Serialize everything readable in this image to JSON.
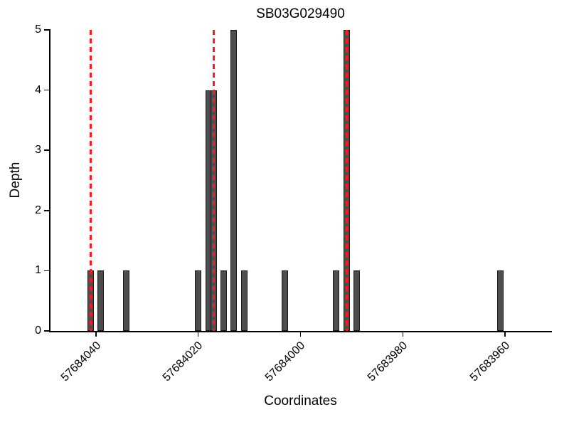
{
  "chart_data": {
    "type": "bar",
    "title": "SB03G029490",
    "xlabel": "Coordinates",
    "ylabel": "Depth",
    "x_axis_reversed": true,
    "x_range": [
      57684049,
      57683951
    ],
    "y_range": [
      0,
      5
    ],
    "y_ticks": [
      0,
      1,
      2,
      3,
      4,
      5
    ],
    "x_ticks": [
      {
        "value": 57684040,
        "label": "57684040"
      },
      {
        "value": 57684020,
        "label": "57684020"
      },
      {
        "value": 57684000,
        "label": "57684000"
      },
      {
        "value": 57683980,
        "label": "57683980"
      },
      {
        "value": 57683960,
        "label": "57683960"
      }
    ],
    "bars": [
      {
        "x": 57684041,
        "depth": 1
      },
      {
        "x": 57684039,
        "depth": 1
      },
      {
        "x": 57684034,
        "depth": 1
      },
      {
        "x": 57684020,
        "depth": 1
      },
      {
        "x": 57684018,
        "depth": 4
      },
      {
        "x": 57684017,
        "depth": 4
      },
      {
        "x": 57684015,
        "depth": 1
      },
      {
        "x": 57684013,
        "depth": 5
      },
      {
        "x": 57684011,
        "depth": 1
      },
      {
        "x": 57684003,
        "depth": 1
      },
      {
        "x": 57683993,
        "depth": 1
      },
      {
        "x": 57683991,
        "depth": 5
      },
      {
        "x": 57683989,
        "depth": 1
      },
      {
        "x": 57683961,
        "depth": 1
      }
    ],
    "red_dashed_lines": [
      57684041,
      57684017,
      57683991
    ],
    "bar_color": "#4d4d4d",
    "bar_border_color": "#1a1a1a",
    "line_color": "#ee2020",
    "background_color": "#ffffff",
    "axis_color": "#000000"
  }
}
